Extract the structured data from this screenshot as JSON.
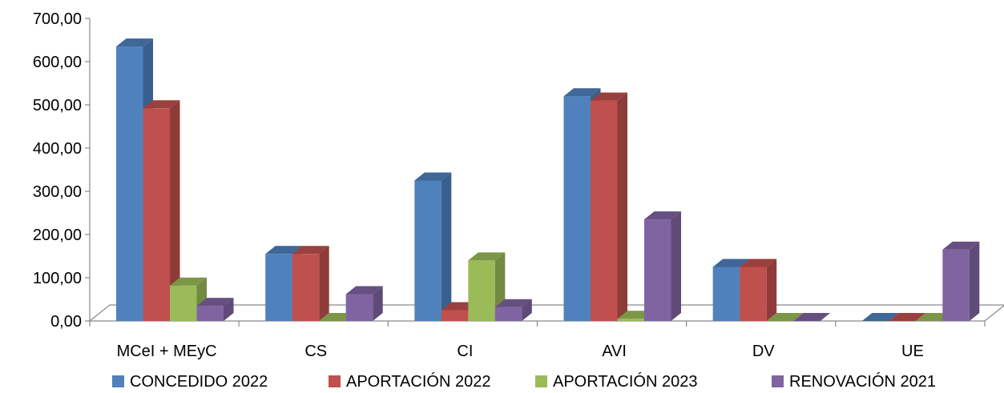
{
  "chart_data": {
    "type": "bar",
    "title": "",
    "xlabel": "",
    "ylabel": "",
    "ylim": [
      0,
      700
    ],
    "yticks": [
      0,
      100,
      200,
      300,
      400,
      500,
      600,
      700
    ],
    "ytick_labels": [
      "0,00",
      "100,00",
      "200,00",
      "300,00",
      "400,00",
      "500,00",
      "600,00",
      "700,00"
    ],
    "categories": [
      "MCeI + MEyC",
      "CS",
      "CI",
      "AVI",
      "DV",
      "UE"
    ],
    "series": [
      {
        "name": "CONCEDIDO 2022",
        "values": [
          635,
          155,
          325,
          520,
          125,
          0
        ],
        "color": "#4F81BD",
        "side": "#3A5F8C",
        "top": "#3F6797"
      },
      {
        "name": "APORTACIÓN 2022",
        "values": [
          492,
          155,
          25,
          510,
          125,
          0
        ],
        "color": "#C0504D",
        "side": "#8E3B39",
        "top": "#9A403E"
      },
      {
        "name": "APORTACIÓN 2023",
        "values": [
          82,
          0,
          140,
          5,
          0,
          0
        ],
        "color": "#9BBB59",
        "side": "#738A42",
        "top": "#7C9647"
      },
      {
        "name": "RENOVACIÓN 2021",
        "values": [
          35,
          62,
          32,
          235,
          0,
          165
        ],
        "color": "#8064A2",
        "side": "#5F4A78",
        "top": "#665081"
      }
    ],
    "legend_position": "bottom",
    "grid": false,
    "style": "3d-clustered-column"
  }
}
